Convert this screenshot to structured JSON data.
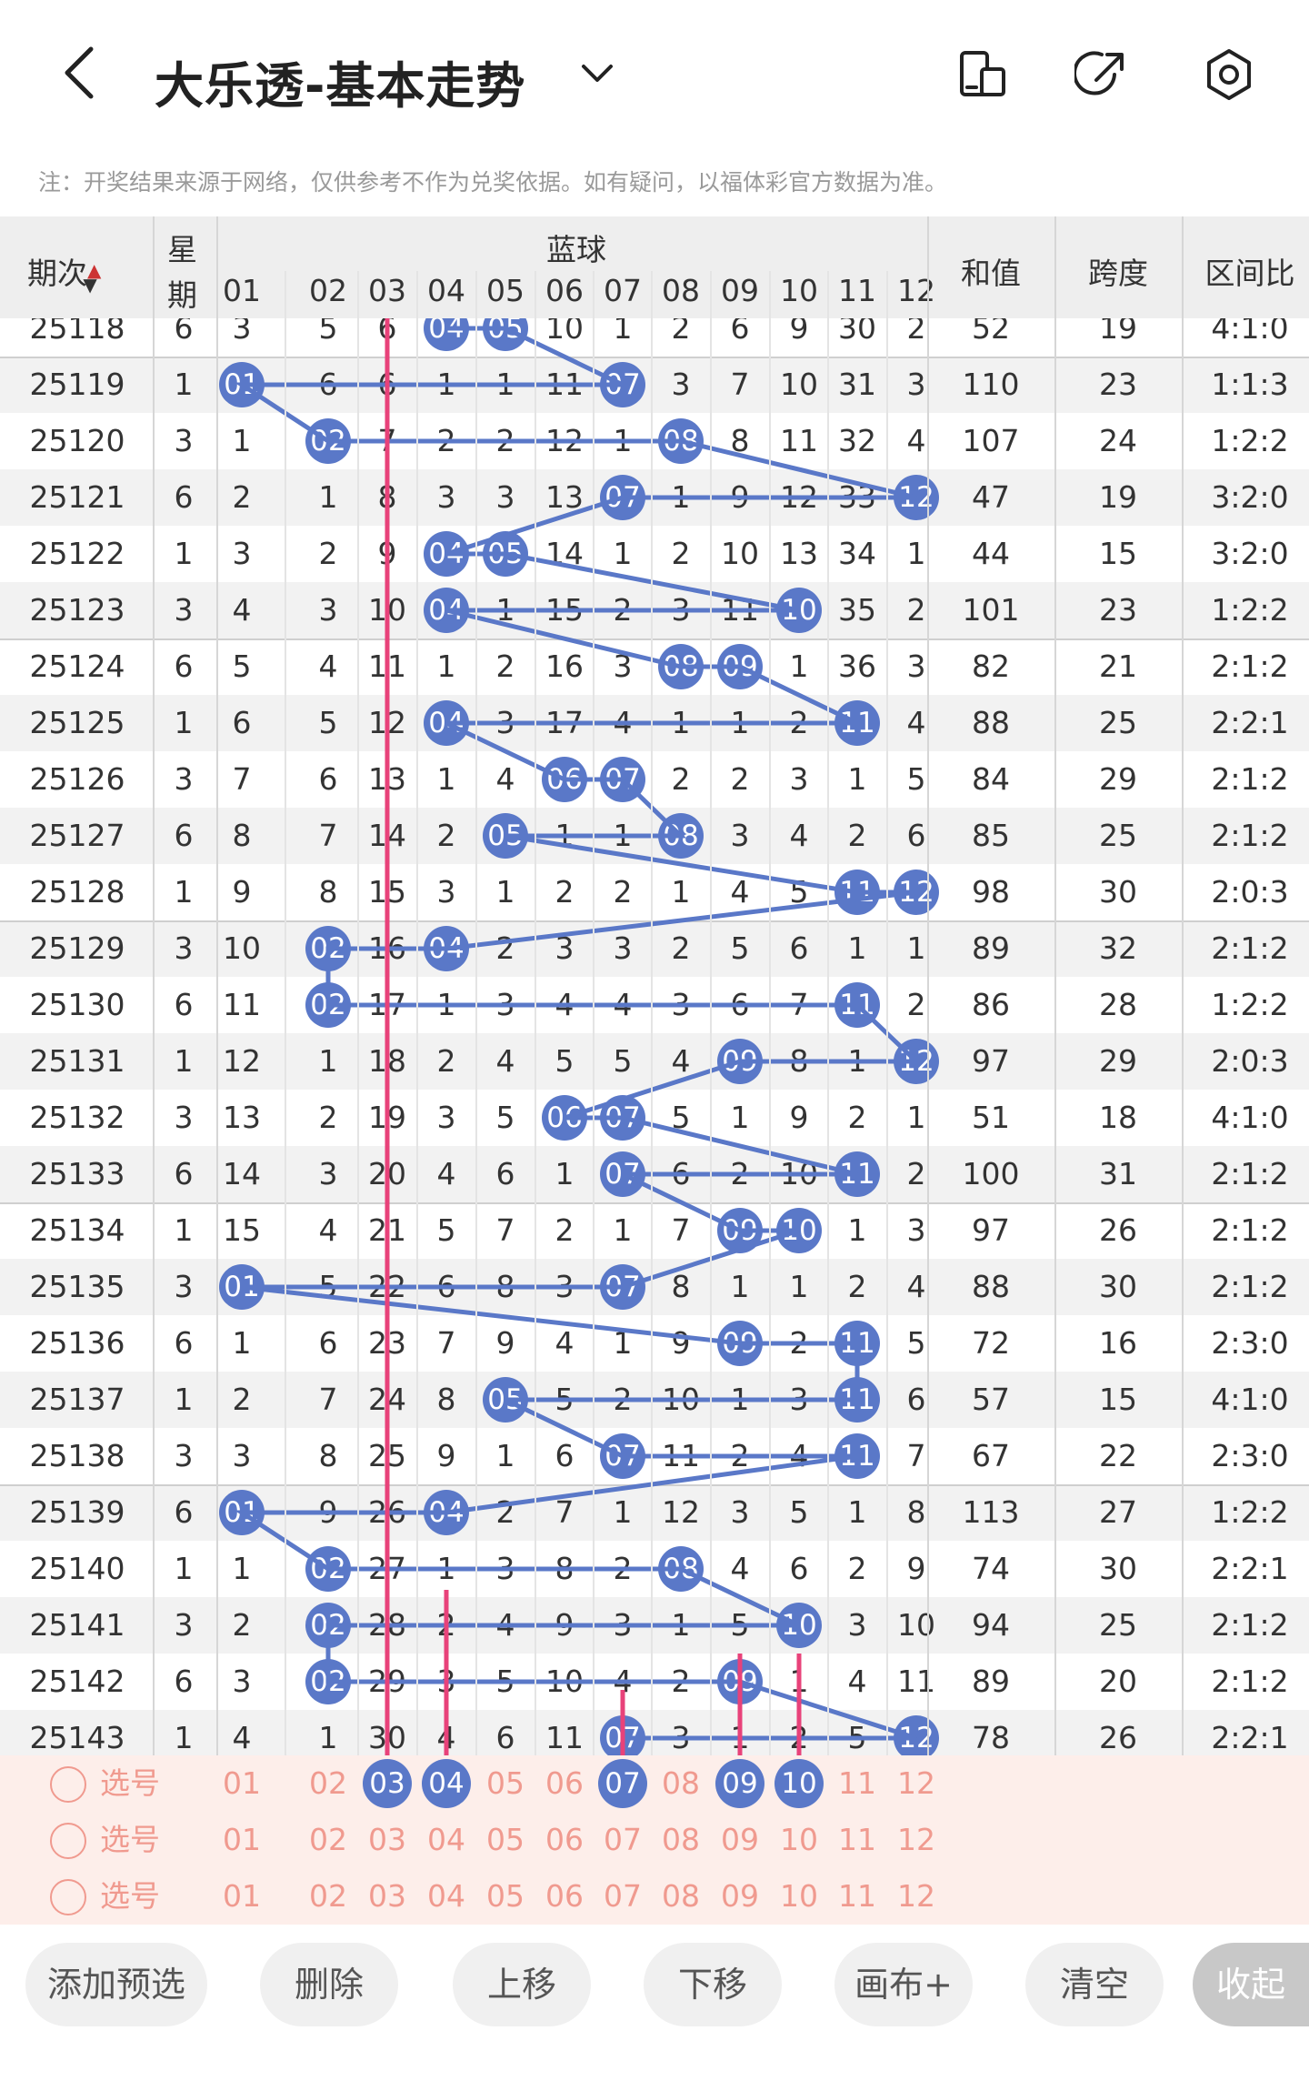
{
  "header": {
    "title": "大乐透-基本走势",
    "notice": "注：开奖结果来源于网络，仅供参考不作为兑奖依据。如有疑问，以福体彩官方数据为准。"
  },
  "table": {
    "columns": {
      "period": "期次",
      "weekday_1": "星",
      "weekday_2": "期",
      "blue": "蓝球",
      "sum": "和值",
      "span": "跨度",
      "ratio": "区间比"
    },
    "blue_numbers": [
      "01",
      "02",
      "03",
      "04",
      "05",
      "06",
      "07",
      "08",
      "09",
      "10",
      "11",
      "12"
    ],
    "rows": [
      {
        "period": "25118",
        "week": "6",
        "cells": [
          "3",
          "5",
          "6",
          "04",
          "05",
          "10",
          "1",
          "2",
          "6",
          "9",
          "30",
          "2"
        ],
        "balls": [
          3,
          4
        ],
        "sum": "52",
        "span": "19",
        "ratio": "4:1:0"
      },
      {
        "period": "25119",
        "week": "1",
        "cells": [
          "01",
          "6",
          "6",
          "1",
          "1",
          "11",
          "07",
          "3",
          "7",
          "10",
          "31",
          "3"
        ],
        "balls": [
          0,
          6
        ],
        "sum": "110",
        "span": "23",
        "ratio": "1:1:3"
      },
      {
        "period": "25120",
        "week": "3",
        "cells": [
          "1",
          "02",
          "7",
          "2",
          "2",
          "12",
          "1",
          "08",
          "8",
          "11",
          "32",
          "4"
        ],
        "balls": [
          1,
          7
        ],
        "sum": "107",
        "span": "24",
        "ratio": "1:2:2"
      },
      {
        "period": "25121",
        "week": "6",
        "cells": [
          "2",
          "1",
          "8",
          "3",
          "3",
          "13",
          "07",
          "1",
          "9",
          "12",
          "33",
          "12"
        ],
        "balls": [
          6,
          11
        ],
        "sum": "47",
        "span": "19",
        "ratio": "3:2:0"
      },
      {
        "period": "25122",
        "week": "1",
        "cells": [
          "3",
          "2",
          "9",
          "04",
          "05",
          "14",
          "1",
          "2",
          "10",
          "13",
          "34",
          "1"
        ],
        "balls": [
          3,
          4
        ],
        "sum": "44",
        "span": "15",
        "ratio": "3:2:0"
      },
      {
        "period": "25123",
        "week": "3",
        "cells": [
          "4",
          "3",
          "10",
          "04",
          "1",
          "15",
          "2",
          "3",
          "11",
          "10",
          "35",
          "2"
        ],
        "balls": [
          3,
          9
        ],
        "sum": "101",
        "span": "23",
        "ratio": "1:2:2"
      },
      {
        "period": "25124",
        "week": "6",
        "cells": [
          "5",
          "4",
          "11",
          "1",
          "2",
          "16",
          "3",
          "08",
          "09",
          "1",
          "36",
          "3"
        ],
        "balls": [
          7,
          8
        ],
        "sum": "82",
        "span": "21",
        "ratio": "2:1:2"
      },
      {
        "period": "25125",
        "week": "1",
        "cells": [
          "6",
          "5",
          "12",
          "04",
          "3",
          "17",
          "4",
          "1",
          "1",
          "2",
          "11",
          "4"
        ],
        "balls": [
          3,
          10
        ],
        "sum": "88",
        "span": "25",
        "ratio": "2:2:1"
      },
      {
        "period": "25126",
        "week": "3",
        "cells": [
          "7",
          "6",
          "13",
          "1",
          "4",
          "06",
          "07",
          "2",
          "2",
          "3",
          "1",
          "5"
        ],
        "balls": [
          5,
          6
        ],
        "sum": "84",
        "span": "29",
        "ratio": "2:1:2"
      },
      {
        "period": "25127",
        "week": "6",
        "cells": [
          "8",
          "7",
          "14",
          "2",
          "05",
          "1",
          "1",
          "08",
          "3",
          "4",
          "2",
          "6"
        ],
        "balls": [
          4,
          7
        ],
        "sum": "85",
        "span": "25",
        "ratio": "2:1:2"
      },
      {
        "period": "25128",
        "week": "1",
        "cells": [
          "9",
          "8",
          "15",
          "3",
          "1",
          "2",
          "2",
          "1",
          "4",
          "5",
          "11",
          "12"
        ],
        "balls": [
          10,
          11
        ],
        "sum": "98",
        "span": "30",
        "ratio": "2:0:3"
      },
      {
        "period": "25129",
        "week": "3",
        "cells": [
          "10",
          "02",
          "16",
          "04",
          "2",
          "3",
          "3",
          "2",
          "5",
          "6",
          "1",
          "1"
        ],
        "balls": [
          1,
          3
        ],
        "sum": "89",
        "span": "32",
        "ratio": "2:1:2"
      },
      {
        "period": "25130",
        "week": "6",
        "cells": [
          "11",
          "02",
          "17",
          "1",
          "3",
          "4",
          "4",
          "3",
          "6",
          "7",
          "11",
          "2"
        ],
        "balls": [
          1,
          10
        ],
        "sum": "86",
        "span": "28",
        "ratio": "1:2:2"
      },
      {
        "period": "25131",
        "week": "1",
        "cells": [
          "12",
          "1",
          "18",
          "2",
          "4",
          "5",
          "5",
          "4",
          "09",
          "8",
          "1",
          "12"
        ],
        "balls": [
          8,
          11
        ],
        "sum": "97",
        "span": "29",
        "ratio": "2:0:3"
      },
      {
        "period": "25132",
        "week": "3",
        "cells": [
          "13",
          "2",
          "19",
          "3",
          "5",
          "06",
          "07",
          "5",
          "1",
          "9",
          "2",
          "1"
        ],
        "balls": [
          5,
          6
        ],
        "sum": "51",
        "span": "18",
        "ratio": "4:1:0"
      },
      {
        "period": "25133",
        "week": "6",
        "cells": [
          "14",
          "3",
          "20",
          "4",
          "6",
          "1",
          "07",
          "6",
          "2",
          "10",
          "11",
          "2"
        ],
        "balls": [
          6,
          10
        ],
        "sum": "100",
        "span": "31",
        "ratio": "2:1:2"
      },
      {
        "period": "25134",
        "week": "1",
        "cells": [
          "15",
          "4",
          "21",
          "5",
          "7",
          "2",
          "1",
          "7",
          "09",
          "10",
          "1",
          "3"
        ],
        "balls": [
          8,
          9
        ],
        "sum": "97",
        "span": "26",
        "ratio": "2:1:2"
      },
      {
        "period": "25135",
        "week": "3",
        "cells": [
          "01",
          "5",
          "22",
          "6",
          "8",
          "3",
          "07",
          "8",
          "1",
          "1",
          "2",
          "4"
        ],
        "balls": [
          0,
          6
        ],
        "sum": "88",
        "span": "30",
        "ratio": "2:1:2"
      },
      {
        "period": "25136",
        "week": "6",
        "cells": [
          "1",
          "6",
          "23",
          "7",
          "9",
          "4",
          "1",
          "9",
          "09",
          "2",
          "11",
          "5"
        ],
        "balls": [
          8,
          10
        ],
        "sum": "72",
        "span": "16",
        "ratio": "2:3:0"
      },
      {
        "period": "25137",
        "week": "1",
        "cells": [
          "2",
          "7",
          "24",
          "8",
          "05",
          "5",
          "2",
          "10",
          "1",
          "3",
          "11",
          "6"
        ],
        "balls": [
          4,
          10
        ],
        "sum": "57",
        "span": "15",
        "ratio": "4:1:0"
      },
      {
        "period": "25138",
        "week": "3",
        "cells": [
          "3",
          "8",
          "25",
          "9",
          "1",
          "6",
          "07",
          "11",
          "2",
          "4",
          "11",
          "7"
        ],
        "balls": [
          6,
          10
        ],
        "sum": "67",
        "span": "22",
        "ratio": "2:3:0"
      },
      {
        "period": "25139",
        "week": "6",
        "cells": [
          "01",
          "9",
          "26",
          "04",
          "2",
          "7",
          "1",
          "12",
          "3",
          "5",
          "1",
          "8"
        ],
        "balls": [
          0,
          3
        ],
        "sum": "113",
        "span": "27",
        "ratio": "1:2:2"
      },
      {
        "period": "25140",
        "week": "1",
        "cells": [
          "1",
          "02",
          "27",
          "1",
          "3",
          "8",
          "2",
          "08",
          "4",
          "6",
          "2",
          "9"
        ],
        "balls": [
          1,
          7
        ],
        "sum": "74",
        "span": "30",
        "ratio": "2:2:1"
      },
      {
        "period": "25141",
        "week": "3",
        "cells": [
          "2",
          "02",
          "28",
          "2",
          "4",
          "9",
          "3",
          "1",
          "5",
          "10",
          "3",
          "10"
        ],
        "balls": [
          1,
          9
        ],
        "sum": "94",
        "span": "25",
        "ratio": "2:1:2"
      },
      {
        "period": "25142",
        "week": "6",
        "cells": [
          "3",
          "02",
          "29",
          "3",
          "5",
          "10",
          "4",
          "2",
          "09",
          "1",
          "4",
          "11"
        ],
        "balls": [
          1,
          8
        ],
        "sum": "89",
        "span": "20",
        "ratio": "2:1:2"
      },
      {
        "period": "25143",
        "week": "1",
        "cells": [
          "4",
          "1",
          "30",
          "4",
          "6",
          "11",
          "07",
          "3",
          "1",
          "2",
          "5",
          "12"
        ],
        "balls": [
          6,
          11
        ],
        "sum": "78",
        "span": "26",
        "ratio": "2:2:1"
      }
    ]
  },
  "selection": {
    "label": "选号",
    "rows": [
      {
        "selected": [
          2,
          3,
          6,
          8,
          9
        ]
      },
      {
        "selected": []
      },
      {
        "selected": []
      }
    ]
  },
  "toolbar": {
    "add": "添加预选",
    "delete": "删除",
    "up": "上移",
    "down": "下移",
    "canvas": "画布+",
    "clear": "清空",
    "collapse": "收起"
  },
  "colors": {
    "ball": "#5a78c8",
    "arrow": "#e8427a",
    "select_text": "#f09a8f",
    "select_bg": "#fdeeea"
  }
}
